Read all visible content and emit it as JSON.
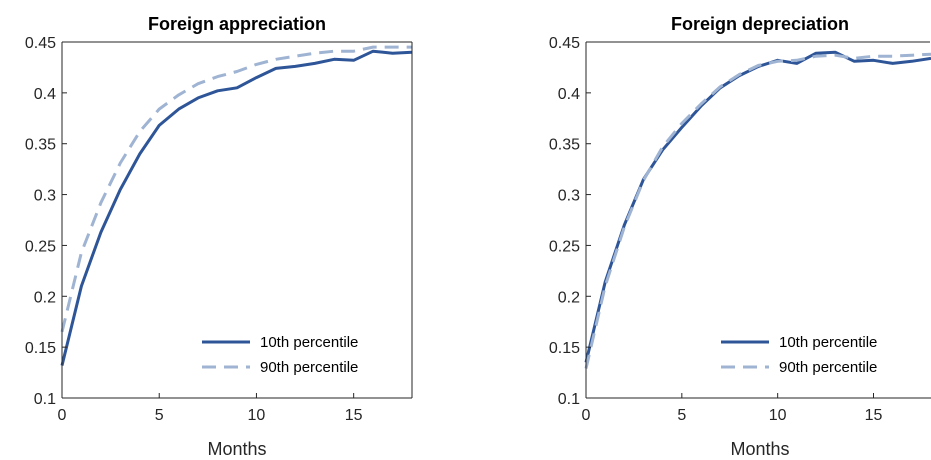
{
  "colors": {
    "series_10": "#2e5597",
    "series_90": "#9fb3d2",
    "axis": "#262626"
  },
  "chart_data": [
    {
      "type": "line",
      "title": "Foreign appreciation",
      "xlabel": "Months",
      "ylabel": "",
      "xlim": [
        0,
        18
      ],
      "ylim": [
        0.1,
        0.45
      ],
      "xticks": [
        0,
        5,
        10,
        15
      ],
      "yticks": [
        0.1,
        0.15,
        0.2,
        0.25,
        0.3,
        0.35,
        0.4,
        0.45
      ],
      "ytick_labels": [
        "0.1",
        "0.15",
        "0.2",
        "0.25",
        "0.3",
        "0.35",
        "0.4",
        "0.45"
      ],
      "legend_position": "bottom-right",
      "x": [
        0,
        1,
        2,
        3,
        4,
        5,
        6,
        7,
        8,
        9,
        10,
        11,
        12,
        13,
        14,
        15,
        16,
        17,
        18
      ],
      "series": [
        {
          "name": "10th percentile",
          "style": "solid",
          "values": [
            0.132,
            0.21,
            0.263,
            0.305,
            0.34,
            0.368,
            0.384,
            0.395,
            0.402,
            0.405,
            0.415,
            0.424,
            0.426,
            0.429,
            0.433,
            0.432,
            0.441,
            0.439,
            0.44
          ]
        },
        {
          "name": "90th percentile",
          "style": "dashed",
          "values": [
            0.165,
            0.243,
            0.292,
            0.331,
            0.362,
            0.384,
            0.398,
            0.409,
            0.416,
            0.421,
            0.428,
            0.433,
            0.436,
            0.439,
            0.441,
            0.441,
            0.445,
            0.445,
            0.445
          ]
        }
      ]
    },
    {
      "type": "line",
      "title": "Foreign depreciation",
      "xlabel": "Months",
      "ylabel": "",
      "xlim": [
        0,
        18
      ],
      "ylim": [
        0.1,
        0.45
      ],
      "xticks": [
        0,
        5,
        10,
        15
      ],
      "yticks": [
        0.1,
        0.15,
        0.2,
        0.25,
        0.3,
        0.35,
        0.4,
        0.45
      ],
      "ytick_labels": [
        "0.1",
        "0.15",
        "0.2",
        "0.25",
        "0.3",
        "0.35",
        "0.4",
        "0.45"
      ],
      "legend_position": "bottom-right",
      "x": [
        0,
        1,
        2,
        3,
        4,
        5,
        6,
        7,
        8,
        9,
        10,
        11,
        12,
        13,
        14,
        15,
        16,
        17,
        18
      ],
      "series": [
        {
          "name": "10th percentile",
          "style": "solid",
          "values": [
            0.135,
            0.214,
            0.27,
            0.315,
            0.344,
            0.366,
            0.387,
            0.405,
            0.417,
            0.426,
            0.432,
            0.429,
            0.439,
            0.44,
            0.431,
            0.432,
            0.429,
            0.431,
            0.434
          ]
        },
        {
          "name": "90th percentile",
          "style": "dashed",
          "values": [
            0.129,
            0.21,
            0.268,
            0.314,
            0.347,
            0.37,
            0.389,
            0.406,
            0.418,
            0.427,
            0.431,
            0.432,
            0.436,
            0.437,
            0.434,
            0.436,
            0.436,
            0.437,
            0.438
          ]
        }
      ]
    }
  ]
}
